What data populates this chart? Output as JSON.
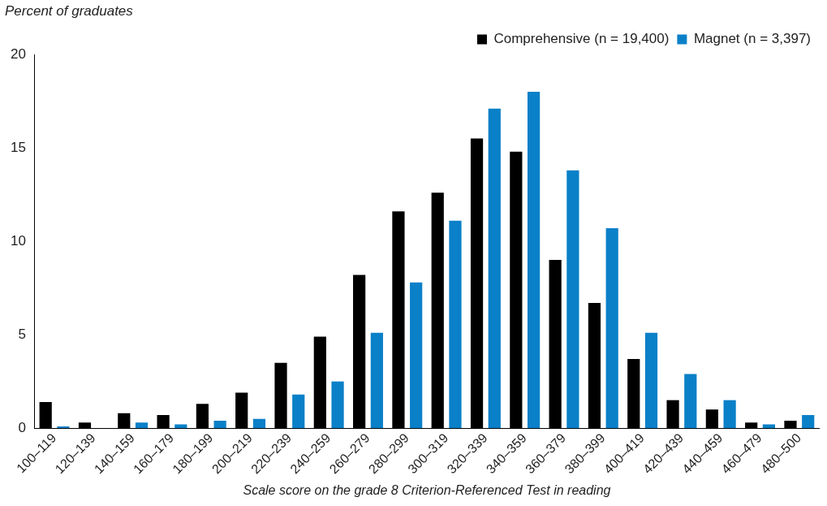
{
  "chart_data": {
    "type": "bar",
    "ylabel": "Percent of graduates",
    "xlabel": "Scale score on the grade 8 Criterion-Referenced Test in reading",
    "categories": [
      "100–119",
      "120–139",
      "140–159",
      "160–179",
      "180–199",
      "200–219",
      "220–239",
      "240–259",
      "260–279",
      "280–299",
      "300–319",
      "320–339",
      "340–359",
      "360–379",
      "380–399",
      "400–419",
      "420–439",
      "440–459",
      "460–479",
      "480–500"
    ],
    "series": [
      {
        "name": "Comprehensive (n = 19,400)",
        "color": "#000000",
        "values": [
          1.4,
          0.3,
          0.8,
          0.7,
          1.3,
          1.9,
          3.5,
          4.9,
          8.2,
          11.6,
          12.6,
          15.5,
          14.8,
          9.0,
          6.7,
          3.7,
          1.5,
          1.0,
          0.3,
          0.4
        ]
      },
      {
        "name": "Magnet (n = 3,397)",
        "color": "#0a80c8",
        "values": [
          0.1,
          0,
          0.3,
          0.2,
          0.4,
          0.5,
          1.8,
          2.5,
          5.1,
          7.8,
          11.1,
          17.1,
          18.0,
          13.8,
          10.7,
          5.1,
          2.9,
          1.5,
          0.2,
          0.7
        ]
      }
    ],
    "ylim": [
      0,
      20
    ],
    "yticks": [
      0,
      5,
      10,
      15,
      20
    ],
    "grid": false,
    "legend": "top right"
  }
}
